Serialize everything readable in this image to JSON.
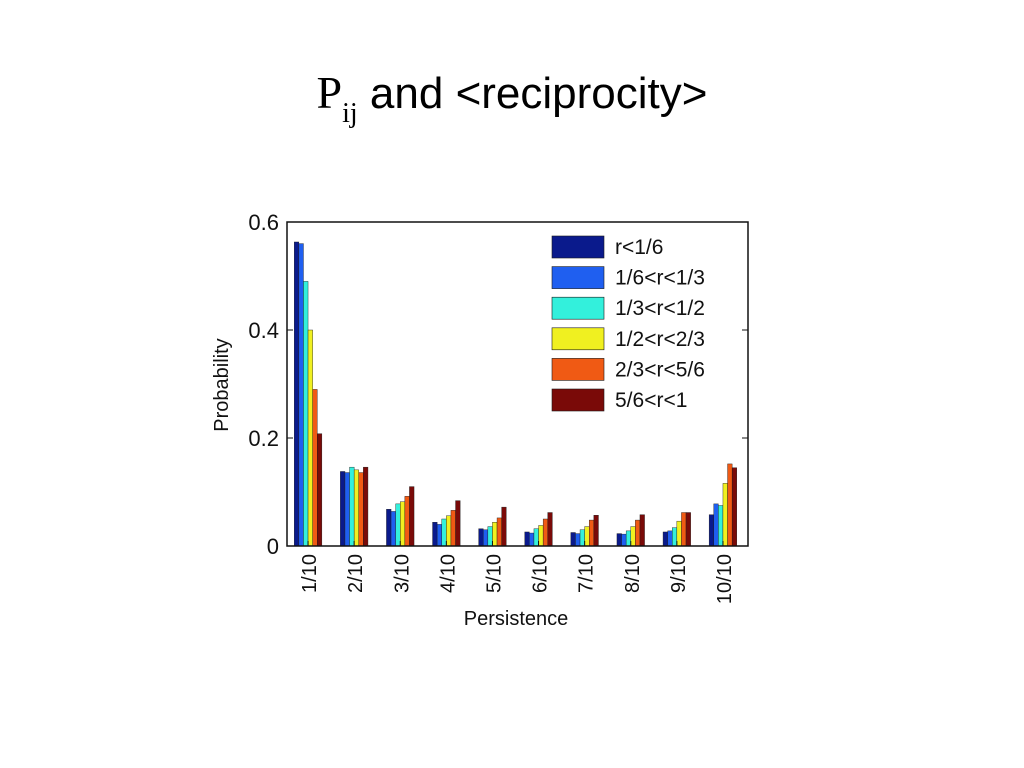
{
  "slide": {
    "title_main": "P",
    "title_subscript": "ij",
    "title_rest": " and <reciprocity>"
  },
  "chart_data": {
    "type": "bar",
    "xlabel": "Persistence",
    "ylabel": "Probability",
    "ylim": [
      0,
      0.6
    ],
    "yticks": [
      0,
      0.2,
      0.4,
      0.6
    ],
    "ytick_labels": [
      "0",
      "0.2",
      "0.4",
      "0.6"
    ],
    "legend_position": "top-right",
    "grid": false,
    "categories": [
      "1/10",
      "2/10",
      "3/10",
      "4/10",
      "5/10",
      "6/10",
      "7/10",
      "8/10",
      "9/10",
      "10/10"
    ],
    "series": [
      {
        "name": "r<1/6",
        "color": "#0a1a8c",
        "values": [
          0.563,
          0.138,
          0.068,
          0.044,
          0.032,
          0.026,
          0.025,
          0.023,
          0.026,
          0.058
        ]
      },
      {
        "name": "1/6<r<1/3",
        "color": "#1f5ff0",
        "values": [
          0.56,
          0.136,
          0.064,
          0.04,
          0.03,
          0.024,
          0.023,
          0.022,
          0.028,
          0.078
        ]
      },
      {
        "name": "1/3<r<1/2",
        "color": "#33f0dc",
        "values": [
          0.49,
          0.146,
          0.078,
          0.05,
          0.036,
          0.032,
          0.03,
          0.028,
          0.034,
          0.075
        ]
      },
      {
        "name": "1/2<r<2/3",
        "color": "#f0f020",
        "values": [
          0.4,
          0.141,
          0.082,
          0.056,
          0.044,
          0.038,
          0.036,
          0.036,
          0.046,
          0.116
        ]
      },
      {
        "name": "2/3<r<5/6",
        "color": "#f05a14",
        "values": [
          0.29,
          0.136,
          0.092,
          0.066,
          0.052,
          0.05,
          0.048,
          0.048,
          0.062,
          0.152
        ]
      },
      {
        "name": "5/6<r<1",
        "color": "#7a0a08",
        "values": [
          0.208,
          0.146,
          0.11,
          0.084,
          0.072,
          0.062,
          0.057,
          0.058,
          0.062,
          0.145
        ]
      }
    ]
  }
}
